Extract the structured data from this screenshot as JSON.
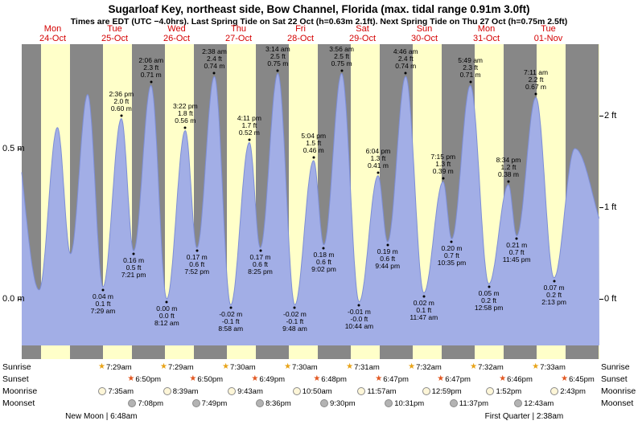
{
  "title": "Sugarloaf Key, northeast side, Bow Channel, Florida (max. tidal range 0.91m 3.0ft)",
  "subtitle": "Times are EDT (UTC −4.0hrs). Last Spring Tide on Sat 22 Oct (h=0.63m 2.1ft). Next Spring Tide on Thu 27 Oct (h=0.75m 2.5ft)",
  "days": [
    {
      "name": "Mon",
      "date": "24-Oct"
    },
    {
      "name": "Tue",
      "date": "25-Oct"
    },
    {
      "name": "Wed",
      "date": "26-Oct"
    },
    {
      "name": "Thu",
      "date": "27-Oct"
    },
    {
      "name": "Fri",
      "date": "28-Oct"
    },
    {
      "name": "Sat",
      "date": "29-Oct"
    },
    {
      "name": "Sun",
      "date": "30-Oct"
    },
    {
      "name": "Mon",
      "date": "31-Oct"
    },
    {
      "name": "Tue",
      "date": "01-Nov"
    }
  ],
  "chart_data": {
    "type": "area",
    "title": "Sugarloaf Key, northeast side, Bow Channel, Florida (max. tidal range 0.91m 3.0ft)",
    "ylabel_left": "m",
    "ylabel_right": "ft",
    "ylim_m": [
      -0.2,
      0.85
    ],
    "yticks_left": [
      {
        "value_m": 0.5,
        "label": "0.5 m"
      },
      {
        "value_m": 0.0,
        "label": "0.0 m"
      }
    ],
    "yticks_right": [
      {
        "value_m": 0.6096,
        "label": "2 ft"
      },
      {
        "value_m": 0.3048,
        "label": "1 ft"
      },
      {
        "value_m": 0.0,
        "label": "0 ft"
      }
    ],
    "tide_extremes": [
      {
        "day": -1,
        "hour": 19.2,
        "height_m": 0.65,
        "type": "high"
      },
      {
        "day": 0,
        "hour": 6.75,
        "height_m": 0.03,
        "type": "low"
      },
      {
        "day": 0,
        "hour": 13.83,
        "height_m": 0.57,
        "type": "high"
      },
      {
        "day": 0,
        "hour": 18.9,
        "height_m": 0.15,
        "type": "low"
      },
      {
        "day": 1,
        "hour": 1.55,
        "height_m": 0.68,
        "type": "high"
      },
      {
        "day": 1,
        "hour": 7.483,
        "height_m": 0.04,
        "type": "low",
        "labels": [
          "0.04 m",
          "0.1 ft",
          "7:29 am"
        ]
      },
      {
        "day": 1,
        "hour": 14.6,
        "height_m": 0.6,
        "type": "high",
        "labels": [
          "2:36 pm",
          "2.0 ft",
          "0.60 m"
        ]
      },
      {
        "day": 1,
        "hour": 19.35,
        "height_m": 0.16,
        "type": "low",
        "labels": [
          "0.16 m",
          "0.5 ft",
          "7:21 pm"
        ]
      },
      {
        "day": 2,
        "hour": 2.1,
        "height_m": 0.71,
        "type": "high",
        "labels": [
          "2:06 am",
          "2.3 ft",
          "0.71 m"
        ]
      },
      {
        "day": 2,
        "hour": 8.2,
        "height_m": 0.0,
        "type": "low",
        "labels": [
          "0.00 m",
          "0.0 ft",
          "8:12 am"
        ]
      },
      {
        "day": 2,
        "hour": 15.367,
        "height_m": 0.56,
        "type": "high",
        "labels": [
          "3:22 pm",
          "1.8 ft",
          "0.56 m"
        ]
      },
      {
        "day": 2,
        "hour": 19.867,
        "height_m": 0.17,
        "type": "low",
        "labels": [
          "0.17 m",
          "0.6 ft",
          "7:52 pm"
        ]
      },
      {
        "day": 3,
        "hour": 2.633,
        "height_m": 0.74,
        "type": "high",
        "labels": [
          "2:38 am",
          "2.4 ft",
          "0.74 m"
        ]
      },
      {
        "day": 3,
        "hour": 8.967,
        "height_m": -0.02,
        "type": "low",
        "labels": [
          "-0.02 m",
          "-0.1 ft",
          "8:58 am"
        ]
      },
      {
        "day": 3,
        "hour": 16.183,
        "height_m": 0.52,
        "type": "high",
        "labels": [
          "4:11 pm",
          "1.7 ft",
          "0.52 m"
        ]
      },
      {
        "day": 3,
        "hour": 20.417,
        "height_m": 0.17,
        "type": "low",
        "labels": [
          "0.17 m",
          "0.6 ft",
          "8:25 pm"
        ]
      },
      {
        "day": 4,
        "hour": 3.233,
        "height_m": 0.75,
        "type": "high",
        "labels": [
          "3:14 am",
          "2.5 ft",
          "0.75 m"
        ]
      },
      {
        "day": 4,
        "hour": 9.8,
        "height_m": -0.02,
        "type": "low",
        "labels": [
          "-0.02 m",
          "-0.1 ft",
          "9:48 am"
        ]
      },
      {
        "day": 4,
        "hour": 17.067,
        "height_m": 0.46,
        "type": "high",
        "labels": [
          "5:04 pm",
          "1.5 ft",
          "0.46 m"
        ]
      },
      {
        "day": 4,
        "hour": 21.033,
        "height_m": 0.18,
        "type": "low",
        "labels": [
          "0.18 m",
          "0.6 ft",
          "9:02 pm"
        ]
      },
      {
        "day": 5,
        "hour": 3.933,
        "height_m": 0.75,
        "type": "high",
        "labels": [
          "3:56 am",
          "2.5 ft",
          "0.75 m"
        ]
      },
      {
        "day": 5,
        "hour": 10.733,
        "height_m": -0.01,
        "type": "low",
        "labels": [
          "-0.01 m",
          "-0.0 ft",
          "10:44 am"
        ]
      },
      {
        "day": 5,
        "hour": 18.067,
        "height_m": 0.41,
        "type": "high",
        "labels": [
          "6:04 pm",
          "1.3 ft",
          "0.41 m"
        ]
      },
      {
        "day": 5,
        "hour": 21.733,
        "height_m": 0.19,
        "type": "low",
        "labels": [
          "0.19 m",
          "0.6 ft",
          "9:44 pm"
        ]
      },
      {
        "day": 6,
        "hour": 4.767,
        "height_m": 0.74,
        "type": "high",
        "labels": [
          "4:46 am",
          "2.4 ft",
          "0.74 m"
        ]
      },
      {
        "day": 6,
        "hour": 11.783,
        "height_m": 0.02,
        "type": "low",
        "labels": [
          "0.02 m",
          "0.1 ft",
          "11:47 am"
        ]
      },
      {
        "day": 6,
        "hour": 19.25,
        "height_m": 0.39,
        "type": "high",
        "labels": [
          "7:15 pm",
          "1.3 ft",
          "0.39 m"
        ]
      },
      {
        "day": 6,
        "hour": 22.583,
        "height_m": 0.2,
        "type": "low",
        "labels": [
          "0.20 m",
          "0.7 ft",
          "10:35 pm"
        ]
      },
      {
        "day": 7,
        "hour": 5.817,
        "height_m": 0.71,
        "type": "high",
        "labels": [
          "5:49 am",
          "2.3 ft",
          "0.71 m"
        ]
      },
      {
        "day": 7,
        "hour": 12.967,
        "height_m": 0.05,
        "type": "low",
        "labels": [
          "0.05 m",
          "0.2 ft",
          "12:58 pm"
        ]
      },
      {
        "day": 7,
        "hour": 20.567,
        "height_m": 0.38,
        "type": "high",
        "labels": [
          "8:34 pm",
          "1.2 ft",
          "0.38 m"
        ]
      },
      {
        "day": 7,
        "hour": 23.75,
        "height_m": 0.21,
        "type": "low",
        "labels": [
          "0.21 m",
          "0.7 ft",
          "11:45 pm"
        ]
      },
      {
        "day": 8,
        "hour": 7.183,
        "height_m": 0.67,
        "type": "high",
        "labels": [
          "7:11 am",
          "2.2 ft",
          "0.67 m"
        ]
      },
      {
        "day": 8,
        "hour": 14.217,
        "height_m": 0.07,
        "type": "low",
        "labels": [
          "0.07 m",
          "0.2 ft",
          "2:13 pm"
        ]
      },
      {
        "day": 8,
        "hour": 22.3,
        "height_m": 0.5,
        "type": "high"
      },
      {
        "day": 9,
        "hour": 12.0,
        "height_m": 0.2,
        "type": "low"
      }
    ]
  },
  "astro": {
    "rows": [
      {
        "key": "sunrise",
        "label": "Sunrise",
        "icon": "star",
        "events": [
          {
            "day": 1,
            "time": "7:29am"
          },
          {
            "day": 2,
            "time": "7:29am"
          },
          {
            "day": 3,
            "time": "7:30am"
          },
          {
            "day": 4,
            "time": "7:30am"
          },
          {
            "day": 5,
            "time": "7:31am"
          },
          {
            "day": 6,
            "time": "7:32am"
          },
          {
            "day": 7,
            "time": "7:32am"
          },
          {
            "day": 8,
            "time": "7:33am"
          }
        ]
      },
      {
        "key": "sunset",
        "label": "Sunset",
        "icon": "star",
        "events": [
          {
            "day": 1,
            "time": "6:50pm"
          },
          {
            "day": 2,
            "time": "6:50pm"
          },
          {
            "day": 3,
            "time": "6:49pm"
          },
          {
            "day": 4,
            "time": "6:48pm"
          },
          {
            "day": 5,
            "time": "6:47pm"
          },
          {
            "day": 6,
            "time": "6:47pm"
          },
          {
            "day": 7,
            "time": "6:46pm"
          },
          {
            "day": 8,
            "time": "6:45pm"
          }
        ]
      },
      {
        "key": "moonrise",
        "label": "Moonrise",
        "icon": "circle",
        "events": [
          {
            "day": 1,
            "time": "7:35am"
          },
          {
            "day": 2,
            "time": "8:39am"
          },
          {
            "day": 3,
            "time": "9:43am"
          },
          {
            "day": 4,
            "time": "10:50am"
          },
          {
            "day": 5,
            "time": "11:57am"
          },
          {
            "day": 6,
            "time": "12:59pm"
          },
          {
            "day": 7,
            "time": "1:52pm"
          },
          {
            "day": 8,
            "time": "2:43pm"
          }
        ]
      },
      {
        "key": "moonset",
        "label": "Moonset",
        "icon": "circle",
        "events": [
          {
            "day": 1,
            "time": "7:08pm"
          },
          {
            "day": 2,
            "time": "7:49pm"
          },
          {
            "day": 3,
            "time": "8:36pm"
          },
          {
            "day": 4,
            "time": "9:30pm"
          },
          {
            "day": 5,
            "time": "10:31pm"
          },
          {
            "day": 6,
            "time": "11:37pm"
          },
          {
            "day": 8,
            "time": "12:43am"
          }
        ]
      }
    ],
    "phases": [
      {
        "label": "New Moon | 6:48am",
        "day": 1,
        "hour": 6.8
      },
      {
        "label": "First Quarter | 2:38am",
        "day": 8,
        "hour": 2.633
      }
    ]
  },
  "colors": {
    "night_band": "#878787",
    "day_band": "#ffffc9",
    "tide_fill": "#a2aee6",
    "tide_stroke": "#7d8ed6",
    "date_label": "#d40000",
    "sunrise_icon": "#e8a317",
    "sunset_icon": "#e25822",
    "moonrise_icon": "#fdf6d8",
    "moonset_icon": "#b3b3b3"
  }
}
